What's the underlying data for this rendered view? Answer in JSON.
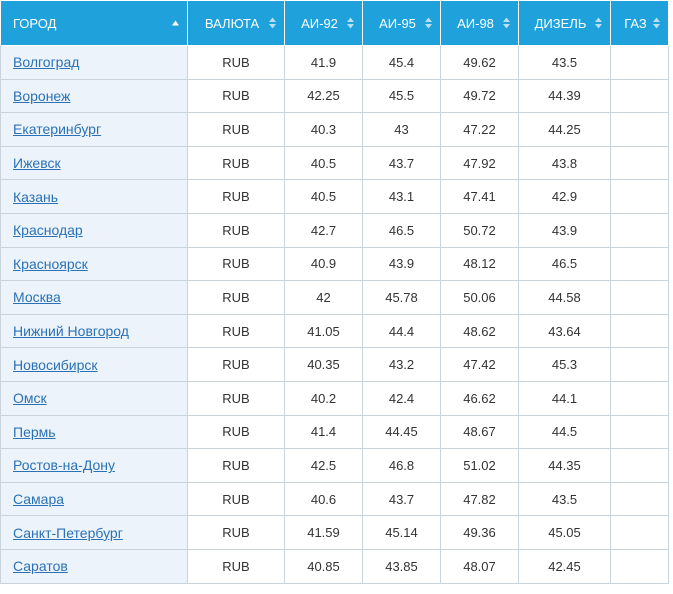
{
  "headers": {
    "city": "ГОРОД",
    "currency": "ВАЛЮТА",
    "ai92": "АИ-92",
    "ai95": "АИ-95",
    "ai98": "АИ-98",
    "diesel": "ДИЗЕЛЬ",
    "gas": "ГАЗ"
  },
  "colors": {
    "header_bg": "#1fa2dc",
    "city_cell_bg": "#edf3fa",
    "link": "#2a72b5"
  },
  "rows": [
    {
      "city": "Волгоград",
      "currency": "RUB",
      "ai92": "41.9",
      "ai95": "45.4",
      "ai98": "49.62",
      "diesel": "43.5",
      "gas": ""
    },
    {
      "city": "Воронеж",
      "currency": "RUB",
      "ai92": "42.25",
      "ai95": "45.5",
      "ai98": "49.72",
      "diesel": "44.39",
      "gas": ""
    },
    {
      "city": "Екатеринбург",
      "currency": "RUB",
      "ai92": "40.3",
      "ai95": "43",
      "ai98": "47.22",
      "diesel": "44.25",
      "gas": ""
    },
    {
      "city": "Ижевск",
      "currency": "RUB",
      "ai92": "40.5",
      "ai95": "43.7",
      "ai98": "47.92",
      "diesel": "43.8",
      "gas": ""
    },
    {
      "city": "Казань",
      "currency": "RUB",
      "ai92": "40.5",
      "ai95": "43.1",
      "ai98": "47.41",
      "diesel": "42.9",
      "gas": ""
    },
    {
      "city": "Краснодар",
      "currency": "RUB",
      "ai92": "42.7",
      "ai95": "46.5",
      "ai98": "50.72",
      "diesel": "43.9",
      "gas": ""
    },
    {
      "city": "Красноярск",
      "currency": "RUB",
      "ai92": "40.9",
      "ai95": "43.9",
      "ai98": "48.12",
      "diesel": "46.5",
      "gas": ""
    },
    {
      "city": "Москва",
      "currency": "RUB",
      "ai92": "42",
      "ai95": "45.78",
      "ai98": "50.06",
      "diesel": "44.58",
      "gas": ""
    },
    {
      "city": "Нижний Новгород",
      "currency": "RUB",
      "ai92": "41.05",
      "ai95": "44.4",
      "ai98": "48.62",
      "diesel": "43.64",
      "gas": ""
    },
    {
      "city": "Новосибирск",
      "currency": "RUB",
      "ai92": "40.35",
      "ai95": "43.2",
      "ai98": "47.42",
      "diesel": "45.3",
      "gas": ""
    },
    {
      "city": "Омск",
      "currency": "RUB",
      "ai92": "40.2",
      "ai95": "42.4",
      "ai98": "46.62",
      "diesel": "44.1",
      "gas": ""
    },
    {
      "city": "Пермь",
      "currency": "RUB",
      "ai92": "41.4",
      "ai95": "44.45",
      "ai98": "48.67",
      "diesel": "44.5",
      "gas": ""
    },
    {
      "city": "Ростов-на-Дону",
      "currency": "RUB",
      "ai92": "42.5",
      "ai95": "46.8",
      "ai98": "51.02",
      "diesel": "44.35",
      "gas": ""
    },
    {
      "city": "Самара",
      "currency": "RUB",
      "ai92": "40.6",
      "ai95": "43.7",
      "ai98": "47.82",
      "diesel": "43.5",
      "gas": ""
    },
    {
      "city": "Санкт-Петербург",
      "currency": "RUB",
      "ai92": "41.59",
      "ai95": "45.14",
      "ai98": "49.36",
      "diesel": "45.05",
      "gas": ""
    },
    {
      "city": "Саратов",
      "currency": "RUB",
      "ai92": "40.85",
      "ai95": "43.85",
      "ai98": "48.07",
      "diesel": "42.45",
      "gas": ""
    }
  ]
}
